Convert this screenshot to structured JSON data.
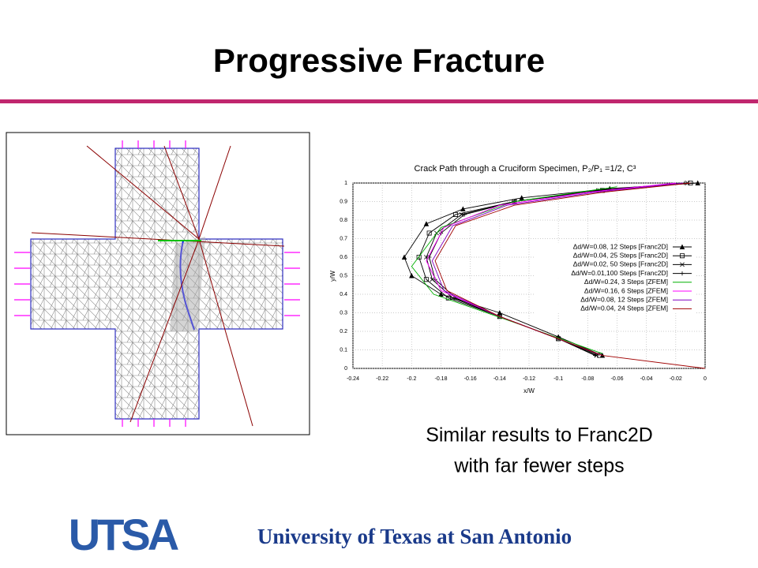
{
  "slide_title": "Progressive Fracture",
  "caption": [
    "Similar results to Franc2D",
    "with far fewer steps"
  ],
  "logo": "UTSA",
  "footer": "University of Texas at San Antonio",
  "chart_data": {
    "type": "line",
    "title": "Crack Path through a Cruciform Specimen, P₂/P₁ =1/2, C³",
    "x_label": "x/W",
    "y_label": "y/W",
    "xlim": [
      -0.24,
      0
    ],
    "ylim": [
      0,
      1
    ],
    "xticks": [
      -0.24,
      -0.22,
      -0.2,
      -0.18,
      -0.16,
      -0.14,
      -0.12,
      -0.1,
      -0.08,
      -0.06,
      -0.04,
      -0.02,
      0
    ],
    "yticks": [
      0,
      0.1,
      0.2,
      0.3,
      0.4,
      0.5,
      0.6,
      0.7,
      0.8,
      0.9,
      1
    ],
    "grid": true,
    "series": [
      {
        "name": "Δd/W=0.08, 12 Steps [Franc2D]",
        "color": "#000000",
        "marker": "triangle",
        "x": [
          -0.005,
          -0.065,
          -0.125,
          -0.165,
          -0.19,
          -0.205,
          -0.2,
          -0.18,
          -0.14,
          -0.1,
          -0.07
        ],
        "y": [
          1,
          0.97,
          0.92,
          0.86,
          0.78,
          0.6,
          0.5,
          0.4,
          0.3,
          0.17,
          0.07
        ]
      },
      {
        "name": "Δd/W=0.04, 25 Steps [Franc2D]",
        "color": "#000000",
        "marker": "square",
        "x": [
          -0.01,
          -0.07,
          -0.13,
          -0.17,
          -0.188,
          -0.195,
          -0.19,
          -0.175,
          -0.14,
          -0.1,
          -0.072
        ],
        "y": [
          1,
          0.96,
          0.9,
          0.83,
          0.73,
          0.6,
          0.48,
          0.38,
          0.28,
          0.16,
          0.07
        ]
      },
      {
        "name": "Δd/W=0.02, 50 Steps [Franc2D]",
        "color": "#000000",
        "marker": "x",
        "x": [
          -0.012,
          -0.072,
          -0.13,
          -0.166,
          -0.183,
          -0.19,
          -0.186,
          -0.172,
          -0.14,
          -0.1,
          -0.074
        ],
        "y": [
          1,
          0.96,
          0.9,
          0.83,
          0.73,
          0.6,
          0.48,
          0.38,
          0.28,
          0.16,
          0.07
        ]
      },
      {
        "name": "Δd/W=0.01,100 Steps [Franc2D]",
        "color": "#000000",
        "marker": "plus",
        "x": [
          -0.014,
          -0.074,
          -0.13,
          -0.164,
          -0.18,
          -0.188,
          -0.184,
          -0.17,
          -0.14,
          -0.1,
          -0.075
        ],
        "y": [
          1,
          0.96,
          0.9,
          0.83,
          0.73,
          0.6,
          0.48,
          0.38,
          0.28,
          0.16,
          0.07
        ]
      },
      {
        "name": "Δd/W=0.24,  3 Steps [ZFEM]",
        "color": "#00b000",
        "x": [
          -0.06,
          -0.13,
          -0.18,
          -0.2,
          -0.185,
          -0.12,
          -0.07
        ],
        "y": [
          0.98,
          0.9,
          0.76,
          0.55,
          0.4,
          0.22,
          0.08
        ]
      },
      {
        "name": "Δd/W=0.16,  6 Steps [ZFEM]",
        "color": "#ff00ff",
        "x": [
          -0.02,
          -0.08,
          -0.14,
          -0.178,
          -0.19,
          -0.18,
          -0.14,
          -0.1,
          -0.07
        ],
        "y": [
          1,
          0.95,
          0.88,
          0.76,
          0.58,
          0.42,
          0.28,
          0.16,
          0.07
        ]
      },
      {
        "name": "Δd/W=0.08, 12 Steps [ZFEM]",
        "color": "#8000c0",
        "x": [
          -0.015,
          -0.075,
          -0.135,
          -0.172,
          -0.186,
          -0.178,
          -0.14,
          -0.1,
          -0.07
        ],
        "y": [
          1,
          0.95,
          0.88,
          0.77,
          0.58,
          0.42,
          0.28,
          0.16,
          0.07
        ]
      },
      {
        "name": "Δd/W=0.04, 24 Steps [ZFEM]",
        "color": "#a00000",
        "x": [
          -0.01,
          -0.07,
          -0.13,
          -0.17,
          -0.184,
          -0.176,
          -0.14,
          -0.1,
          -0.07,
          0
        ],
        "y": [
          1,
          0.95,
          0.88,
          0.77,
          0.58,
          0.42,
          0.28,
          0.16,
          0.07,
          0
        ]
      }
    ],
    "legend": "inside-right"
  }
}
